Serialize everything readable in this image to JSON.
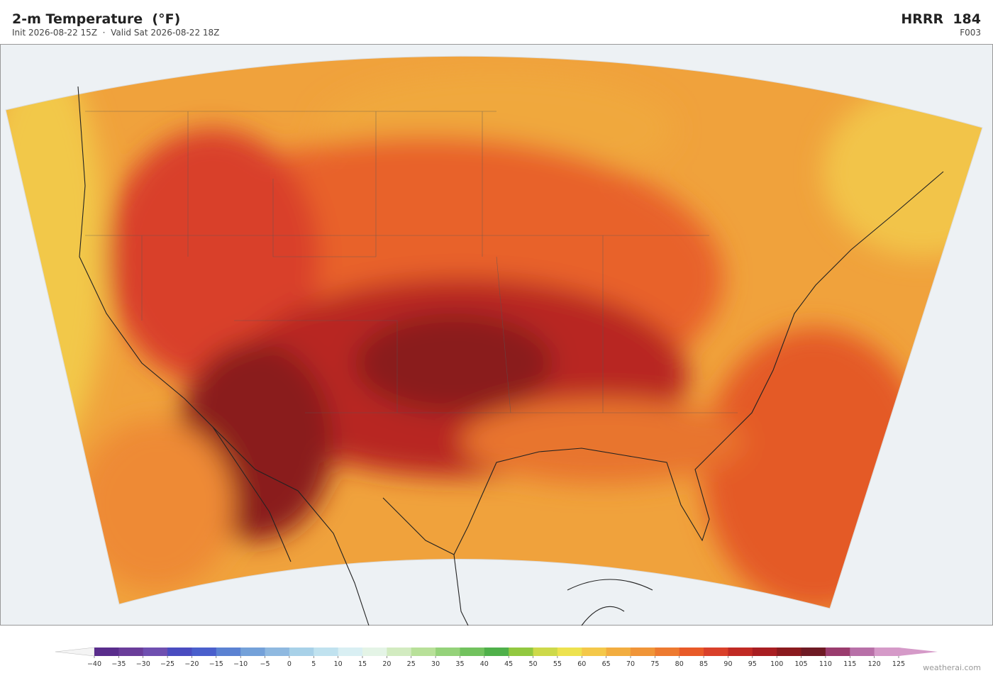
{
  "header": {
    "title": "2-m Temperature  (°F)",
    "subtitle": "Init 2026-08-22 15Z  ·  Valid Sat 2026-08-22 18Z",
    "model": "HRRR  184",
    "forecast_hour": "F003"
  },
  "colorbar": {
    "ticks": [
      {
        "value": -40,
        "label": "−40"
      },
      {
        "value": -35,
        "label": "−35"
      },
      {
        "value": -30,
        "label": "−30"
      },
      {
        "value": -25,
        "label": "−25"
      },
      {
        "value": -20,
        "label": "−20"
      },
      {
        "value": -15,
        "label": "−15"
      },
      {
        "value": -10,
        "label": "−10"
      },
      {
        "value": -5,
        "label": "−5"
      },
      0,
      5,
      10,
      15,
      20,
      25,
      30,
      35,
      40,
      45,
      50,
      55,
      60,
      65,
      70,
      75,
      80,
      85,
      90,
      95,
      100,
      105,
      110,
      115,
      120,
      125
    ],
    "colors": [
      "#5a2d8c",
      "#6a3d9a",
      "#6f4fb0",
      "#4a4cc0",
      "#4a5fcc",
      "#5b82d2",
      "#74a1d9",
      "#8fb9e0",
      "#a8d1e8",
      "#c0e2ef",
      "#d9eff3",
      "#e4f4e6",
      "#d2ebc0",
      "#b8e099",
      "#95d27a",
      "#72c25e",
      "#4fb04a",
      "#92c840",
      "#cdd94a",
      "#ede24f",
      "#f4c84a",
      "#f2ad40",
      "#f09538",
      "#ed7a30",
      "#e85a28",
      "#d9402a",
      "#c02a24",
      "#a81e22",
      "#8a1a1e",
      "#6e1a24",
      "#9a3c6e",
      "#b870a8",
      "#d59ac8"
    ],
    "under_color": "#f4f4f4",
    "over_color": "#d59ac8"
  },
  "watermark": "weatherai.com"
}
